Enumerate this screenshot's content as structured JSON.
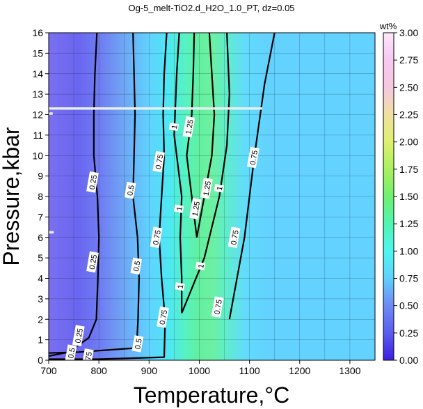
{
  "chart_data": {
    "type": "heatmap",
    "title": "Og-5_melt-TiO2.d_H2O_1.0_PT, dz=0.05",
    "xlabel": "Temperature,°C",
    "ylabel": "Pressure,kbar",
    "xlim": [
      700,
      1350
    ],
    "ylim": [
      0,
      16
    ],
    "xticks": [
      "700",
      "800",
      "900",
      "1000",
      "1100",
      "1200",
      "1300"
    ],
    "yticks": [
      "0",
      "1",
      "2",
      "3",
      "4",
      "5",
      "6",
      "7",
      "8",
      "9",
      "10",
      "11",
      "12",
      "13",
      "14",
      "15",
      "16"
    ],
    "colorbar": {
      "label": "wt%",
      "range": [
        0,
        3
      ],
      "ticks": [
        "0.00",
        "0.25",
        "0.50",
        "0.75",
        "1.00",
        "1.25",
        "1.50",
        "1.75",
        "2.00",
        "2.25",
        "2.50",
        "2.75",
        "3.00"
      ],
      "colors": [
        "#3b1ee0",
        "#5a5af0",
        "#6f8cf5",
        "#5fd0ff",
        "#4ff5f0",
        "#50f5b0",
        "#70f070",
        "#a8f060",
        "#e0f070",
        "#f0e0a0",
        "#f5c8e0",
        "#f8c8f0",
        "#fce8fc"
      ]
    },
    "grid": true,
    "grid_interval": {
      "x": 50,
      "y": 1
    },
    "contours": [
      {
        "level": 0.25,
        "points": [
          [
            700,
            0.2
          ],
          [
            740,
            0.4
          ],
          [
            780,
            1.1
          ],
          [
            795,
            2.0
          ],
          [
            798,
            4.0
          ],
          [
            800,
            6.0
          ],
          [
            797,
            8.0
          ],
          [
            790,
            10.0
          ],
          [
            790,
            12.0
          ],
          [
            792,
            14.0
          ],
          [
            796,
            16.0
          ]
        ],
        "labels": [
          {
            "text": "0.25",
            "x": 788,
            "y": 4.8
          },
          {
            "text": "0.25",
            "x": 788,
            "y": 8.7
          },
          {
            "text": "0.25",
            "x": 760,
            "y": 1.2
          }
        ]
      },
      {
        "level": 0.5,
        "points": [
          [
            700,
            0.35
          ],
          [
            760,
            0.4
          ],
          [
            875,
            0.6
          ],
          [
            878,
            2.0
          ],
          [
            880,
            4.0
          ],
          [
            877,
            6.0
          ],
          [
            868,
            8.0
          ],
          [
            870,
            10.0
          ],
          [
            872,
            12.0
          ],
          [
            870,
            14.0
          ],
          [
            868,
            16.0
          ]
        ],
        "labels": [
          {
            "text": "0.5",
            "x": 863,
            "y": 8.3
          },
          {
            "text": "0.5",
            "x": 875,
            "y": 4.6
          },
          {
            "text": "0.5",
            "x": 878,
            "y": 0.8
          },
          {
            "text": "0.5",
            "x": 745,
            "y": 0.35
          }
        ]
      },
      {
        "level": 0.75,
        "points": [
          [
            700,
            0.05
          ],
          [
            800,
            0.05
          ],
          [
            930,
            0.15
          ],
          [
            932,
            2.0
          ],
          [
            925,
            4.0
          ],
          [
            920,
            6.0
          ],
          [
            925,
            8.0
          ],
          [
            930,
            10.0
          ],
          [
            928,
            12.0
          ],
          [
            930,
            14.0
          ],
          [
            935,
            16.0
          ]
        ],
        "labels": [
          {
            "text": "0.75",
            "x": 920,
            "y": 9.7
          },
          {
            "text": "0.75",
            "x": 915,
            "y": 6.0
          },
          {
            "text": "0.75",
            "x": 928,
            "y": 2.1
          },
          {
            "text": "0.75",
            "x": 778,
            "y": 0.05
          }
        ]
      },
      {
        "level": 0.75,
        "points": [
          [
            1060,
            2.0
          ],
          [
            1090,
            6.0
          ],
          [
            1110,
            10.0
          ],
          [
            1130,
            13.5
          ],
          [
            1150,
            16.0
          ]
        ],
        "labels": [
          {
            "text": "0.75",
            "x": 1037,
            "y": 2.6
          },
          {
            "text": "0.75",
            "x": 1070,
            "y": 6.0
          },
          {
            "text": "0.75",
            "x": 1108,
            "y": 9.9
          }
        ]
      },
      {
        "level": 1.0,
        "points": [
          [
            965,
            2.3
          ],
          [
            1010,
            5.0
          ],
          [
            1040,
            8.0
          ],
          [
            1055,
            10.5
          ],
          [
            1060,
            13.0
          ],
          [
            1055,
            16.0
          ]
        ],
        "labels": [
          {
            "text": "1",
            "x": 1003,
            "y": 4.6
          },
          {
            "text": "1",
            "x": 1040,
            "y": 8.4
          }
        ]
      },
      {
        "level": 1.0,
        "points": [
          [
            965,
            2.3
          ],
          [
            965,
            4.0
          ],
          [
            962,
            6.0
          ],
          [
            965,
            8.0
          ],
          [
            950,
            11.0
          ],
          [
            955,
            14.0
          ],
          [
            960,
            16.0
          ]
        ],
        "labels": [
          {
            "text": "1",
            "x": 962,
            "y": 3.6
          },
          {
            "text": "1",
            "x": 960,
            "y": 7.4
          },
          {
            "text": "1",
            "x": 950,
            "y": 11.4
          }
        ]
      },
      {
        "level": 1.25,
        "points": [
          [
            995,
            6.0
          ],
          [
            1010,
            8.0
          ],
          [
            1025,
            10.0
          ],
          [
            1030,
            12.0
          ],
          [
            1025,
            14.0
          ],
          [
            1020,
            16.0
          ]
        ],
        "labels": [
          {
            "text": "1.25",
            "x": 1015,
            "y": 8.4
          },
          {
            "text": "1.25",
            "x": 993,
            "y": 7.4
          }
        ]
      },
      {
        "level": 1.25,
        "points": [
          [
            995,
            6.0
          ],
          [
            985,
            8.0
          ],
          [
            975,
            10.0
          ],
          [
            985,
            12.0
          ],
          [
            988,
            14.0
          ],
          [
            990,
            16.0
          ]
        ],
        "labels": [
          {
            "text": "1.25",
            "x": 980,
            "y": 11.4
          }
        ]
      }
    ],
    "white_lines": [
      {
        "y": 12.3,
        "x": [
          700,
          1125
        ]
      },
      {
        "y": 12.05,
        "x": [
          700,
          708
        ]
      },
      {
        "y": 6.25,
        "x": [
          700,
          710
        ]
      }
    ]
  }
}
